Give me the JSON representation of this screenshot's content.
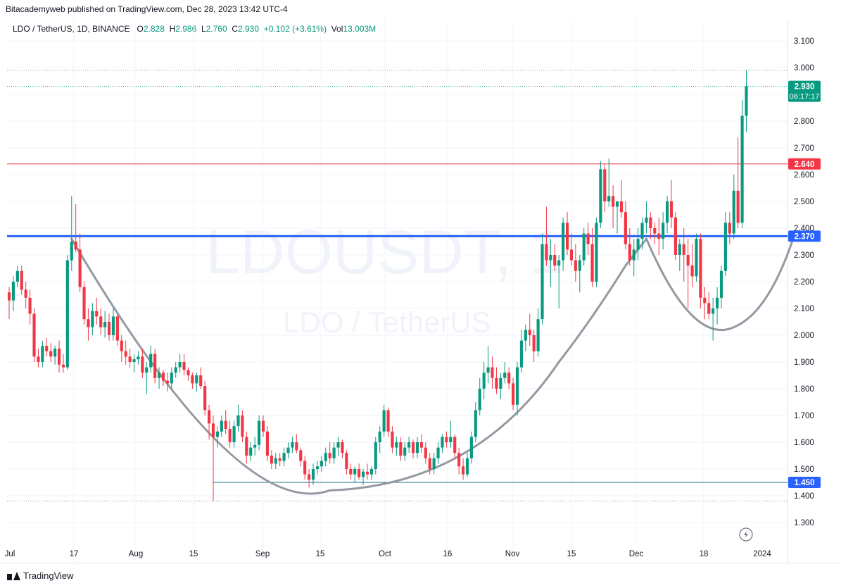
{
  "header": {
    "published_line": "Bitacademyweb published on TradingView.com, Dec 28, 2023 13:42 UTC-4"
  },
  "legend": {
    "symbol": "LDO / TetherUS, 1D, BINANCE",
    "o_label": "O",
    "o_value": "2.828",
    "h_label": "H",
    "h_value": "2.986",
    "l_label": "L",
    "l_value": "2.760",
    "c_label": "C",
    "c_value": "2.930",
    "change": "+0.102 (+3.61%)",
    "vol_label": "Vol",
    "vol_value": "13.003M"
  },
  "watermark": {
    "ticker": "LDOUSDT, 1",
    "pair": "LDO / TetherUS"
  },
  "footer": {
    "brand": "TradingView"
  },
  "colors": {
    "up": "#089981",
    "down": "#f23645",
    "support_blue": "#2962ff",
    "resistance_red": "#f23645",
    "low_line": "#1e6e8a",
    "arc": "#9598a1"
  },
  "chart_data": {
    "type": "candlestick",
    "price_axis": {
      "ticks": [
        "3.100",
        "3.000",
        "2.900",
        "2.800",
        "2.700",
        "2.600",
        "2.500",
        "2.400",
        "2.300",
        "2.200",
        "2.100",
        "2.000",
        "1.900",
        "1.800",
        "1.700",
        "1.600",
        "1.500",
        "1.400",
        "1.300"
      ],
      "range": [
        1.25,
        3.16
      ]
    },
    "time_axis": {
      "ticks": [
        "Jul",
        "17",
        "Aug",
        "15",
        "Sep",
        "15",
        "Oct",
        "16",
        "Nov",
        "15",
        "Dec",
        "18",
        "2024"
      ]
    },
    "price_labels": {
      "last_price": "2.930",
      "countdown": "06:17:17",
      "resistance": "2.640",
      "support": "2.370",
      "low": "1.450"
    },
    "levels": {
      "resistance": 2.64,
      "support": 2.37,
      "low": 1.45,
      "high_dotted": 2.99,
      "low_dotted": 1.38,
      "last_dotted": 2.93
    },
    "candles": [
      [
        2.16,
        2.18,
        2.06,
        2.13
      ],
      [
        2.13,
        2.22,
        2.09,
        2.2
      ],
      [
        2.2,
        2.26,
        2.18,
        2.24
      ],
      [
        2.24,
        2.26,
        2.15,
        2.17
      ],
      [
        2.17,
        2.2,
        2.1,
        2.14
      ],
      [
        2.14,
        2.17,
        2.04,
        2.08
      ],
      [
        2.08,
        2.1,
        1.9,
        1.92
      ],
      [
        1.92,
        1.95,
        1.88,
        1.9
      ],
      [
        1.9,
        1.98,
        1.88,
        1.96
      ],
      [
        1.96,
        1.99,
        1.92,
        1.94
      ],
      [
        1.94,
        1.97,
        1.9,
        1.92
      ],
      [
        1.92,
        1.96,
        1.89,
        1.95
      ],
      [
        1.95,
        1.98,
        1.86,
        1.89
      ],
      [
        1.89,
        1.93,
        1.86,
        1.88
      ],
      [
        1.88,
        2.3,
        1.87,
        2.28
      ],
      [
        2.28,
        2.52,
        2.24,
        2.35
      ],
      [
        2.35,
        2.49,
        2.31,
        2.32
      ],
      [
        2.32,
        2.38,
        2.16,
        2.18
      ],
      [
        2.18,
        2.2,
        2.04,
        2.06
      ],
      [
        2.06,
        2.1,
        1.98,
        2.03
      ],
      [
        2.03,
        2.12,
        2.0,
        2.09
      ],
      [
        2.09,
        2.14,
        2.04,
        2.07
      ],
      [
        2.07,
        2.1,
        2.0,
        2.03
      ],
      [
        2.03,
        2.09,
        1.99,
        2.05
      ],
      [
        2.05,
        2.08,
        1.98,
        2.0
      ],
      [
        2.0,
        2.1,
        1.98,
        2.07
      ],
      [
        2.07,
        2.08,
        1.96,
        1.98
      ],
      [
        1.98,
        2.0,
        1.9,
        1.94
      ],
      [
        1.94,
        1.98,
        1.89,
        1.92
      ],
      [
        1.92,
        1.95,
        1.88,
        1.9
      ],
      [
        1.9,
        1.93,
        1.86,
        1.91
      ],
      [
        1.91,
        1.94,
        1.89,
        1.92
      ],
      [
        1.92,
        1.95,
        1.84,
        1.86
      ],
      [
        1.86,
        1.9,
        1.78,
        1.88
      ],
      [
        1.88,
        1.96,
        1.86,
        1.93
      ],
      [
        1.93,
        1.95,
        1.82,
        1.84
      ],
      [
        1.84,
        1.88,
        1.8,
        1.86
      ],
      [
        1.86,
        1.87,
        1.81,
        1.83
      ],
      [
        1.83,
        1.86,
        1.79,
        1.82
      ],
      [
        1.82,
        1.88,
        1.8,
        1.86
      ],
      [
        1.86,
        1.9,
        1.84,
        1.88
      ],
      [
        1.88,
        1.93,
        1.86,
        1.9
      ],
      [
        1.9,
        1.93,
        1.85,
        1.87
      ],
      [
        1.87,
        1.88,
        1.83,
        1.85
      ],
      [
        1.85,
        1.86,
        1.8,
        1.82
      ],
      [
        1.82,
        1.86,
        1.79,
        1.85
      ],
      [
        1.85,
        1.88,
        1.8,
        1.81
      ],
      [
        1.81,
        1.83,
        1.7,
        1.72
      ],
      [
        1.72,
        1.74,
        1.61,
        1.67
      ],
      [
        1.67,
        1.7,
        1.38,
        1.62
      ],
      [
        1.62,
        1.66,
        1.58,
        1.64
      ],
      [
        1.64,
        1.7,
        1.62,
        1.68
      ],
      [
        1.68,
        1.72,
        1.63,
        1.65
      ],
      [
        1.65,
        1.68,
        1.58,
        1.6
      ],
      [
        1.6,
        1.68,
        1.58,
        1.66
      ],
      [
        1.66,
        1.74,
        1.64,
        1.7
      ],
      [
        1.7,
        1.72,
        1.6,
        1.62
      ],
      [
        1.62,
        1.64,
        1.52,
        1.55
      ],
      [
        1.55,
        1.6,
        1.53,
        1.58
      ],
      [
        1.58,
        1.62,
        1.55,
        1.59
      ],
      [
        1.59,
        1.7,
        1.57,
        1.68
      ],
      [
        1.68,
        1.7,
        1.62,
        1.64
      ],
      [
        1.64,
        1.66,
        1.53,
        1.55
      ],
      [
        1.55,
        1.57,
        1.5,
        1.52
      ],
      [
        1.52,
        1.56,
        1.5,
        1.54
      ],
      [
        1.54,
        1.56,
        1.51,
        1.53
      ],
      [
        1.53,
        1.58,
        1.51,
        1.56
      ],
      [
        1.56,
        1.6,
        1.54,
        1.58
      ],
      [
        1.58,
        1.62,
        1.56,
        1.6
      ],
      [
        1.6,
        1.63,
        1.56,
        1.57
      ],
      [
        1.57,
        1.58,
        1.51,
        1.53
      ],
      [
        1.53,
        1.55,
        1.46,
        1.48
      ],
      [
        1.48,
        1.5,
        1.43,
        1.46
      ],
      [
        1.46,
        1.52,
        1.44,
        1.5
      ],
      [
        1.5,
        1.53,
        1.48,
        1.51
      ],
      [
        1.51,
        1.55,
        1.49,
        1.53
      ],
      [
        1.53,
        1.58,
        1.51,
        1.56
      ],
      [
        1.56,
        1.6,
        1.52,
        1.54
      ],
      [
        1.54,
        1.6,
        1.52,
        1.58
      ],
      [
        1.58,
        1.62,
        1.55,
        1.6
      ],
      [
        1.6,
        1.61,
        1.54,
        1.56
      ],
      [
        1.56,
        1.57,
        1.48,
        1.5
      ],
      [
        1.5,
        1.52,
        1.46,
        1.48
      ],
      [
        1.48,
        1.51,
        1.45,
        1.5
      ],
      [
        1.5,
        1.52,
        1.46,
        1.47
      ],
      [
        1.47,
        1.5,
        1.44,
        1.49
      ],
      [
        1.49,
        1.52,
        1.46,
        1.48
      ],
      [
        1.48,
        1.51,
        1.46,
        1.5
      ],
      [
        1.5,
        1.62,
        1.48,
        1.6
      ],
      [
        1.6,
        1.66,
        1.56,
        1.64
      ],
      [
        1.64,
        1.74,
        1.62,
        1.72
      ],
      [
        1.72,
        1.73,
        1.62,
        1.64
      ],
      [
        1.64,
        1.66,
        1.56,
        1.58
      ],
      [
        1.58,
        1.62,
        1.55,
        1.6
      ],
      [
        1.6,
        1.62,
        1.53,
        1.55
      ],
      [
        1.55,
        1.6,
        1.53,
        1.58
      ],
      [
        1.58,
        1.62,
        1.56,
        1.6
      ],
      [
        1.6,
        1.61,
        1.54,
        1.56
      ],
      [
        1.56,
        1.62,
        1.54,
        1.6
      ],
      [
        1.6,
        1.63,
        1.56,
        1.58
      ],
      [
        1.58,
        1.6,
        1.52,
        1.54
      ],
      [
        1.54,
        1.56,
        1.48,
        1.5
      ],
      [
        1.5,
        1.56,
        1.48,
        1.54
      ],
      [
        1.54,
        1.6,
        1.52,
        1.58
      ],
      [
        1.58,
        1.63,
        1.56,
        1.62
      ],
      [
        1.62,
        1.64,
        1.58,
        1.6
      ],
      [
        1.6,
        1.68,
        1.58,
        1.62
      ],
      [
        1.62,
        1.63,
        1.54,
        1.56
      ],
      [
        1.56,
        1.58,
        1.48,
        1.51
      ],
      [
        1.51,
        1.54,
        1.46,
        1.48
      ],
      [
        1.48,
        1.56,
        1.47,
        1.54
      ],
      [
        1.54,
        1.64,
        1.52,
        1.62
      ],
      [
        1.62,
        1.75,
        1.6,
        1.72
      ],
      [
        1.72,
        1.84,
        1.7,
        1.8
      ],
      [
        1.8,
        1.9,
        1.76,
        1.86
      ],
      [
        1.86,
        1.96,
        1.82,
        1.88
      ],
      [
        1.88,
        1.92,
        1.8,
        1.84
      ],
      [
        1.84,
        1.88,
        1.78,
        1.8
      ],
      [
        1.8,
        1.86,
        1.76,
        1.84
      ],
      [
        1.84,
        1.9,
        1.82,
        1.86
      ],
      [
        1.86,
        1.88,
        1.8,
        1.82
      ],
      [
        1.82,
        1.84,
        1.72,
        1.74
      ],
      [
        1.74,
        1.9,
        1.7,
        1.88
      ],
      [
        1.88,
        2.02,
        1.86,
        1.98
      ],
      [
        1.98,
        2.04,
        1.94,
        2.02
      ],
      [
        2.02,
        2.08,
        1.96,
        2.0
      ],
      [
        2.0,
        2.02,
        1.9,
        1.94
      ],
      [
        1.94,
        2.1,
        1.92,
        2.06
      ],
      [
        2.06,
        2.38,
        2.04,
        2.34
      ],
      [
        2.34,
        2.48,
        2.26,
        2.28
      ],
      [
        2.28,
        2.36,
        2.18,
        2.3
      ],
      [
        2.3,
        2.34,
        2.24,
        2.26
      ],
      [
        2.26,
        2.3,
        2.1,
        2.28
      ],
      [
        2.28,
        2.44,
        2.24,
        2.42
      ],
      [
        2.42,
        2.46,
        2.3,
        2.32
      ],
      [
        2.32,
        2.38,
        2.26,
        2.28
      ],
      [
        2.28,
        2.34,
        2.2,
        2.24
      ],
      [
        2.24,
        2.3,
        2.16,
        2.28
      ],
      [
        2.28,
        2.4,
        2.26,
        2.38
      ],
      [
        2.38,
        2.42,
        2.3,
        2.34
      ],
      [
        2.34,
        2.4,
        2.18,
        2.2
      ],
      [
        2.2,
        2.44,
        2.18,
        2.42
      ],
      [
        2.42,
        2.65,
        2.4,
        2.62
      ],
      [
        2.62,
        2.64,
        2.46,
        2.5
      ],
      [
        2.5,
        2.66,
        2.48,
        2.52
      ],
      [
        2.52,
        2.56,
        2.4,
        2.48
      ],
      [
        2.48,
        2.5,
        2.38,
        2.5
      ],
      [
        2.5,
        2.58,
        2.44,
        2.46
      ],
      [
        2.46,
        2.5,
        2.32,
        2.34
      ],
      [
        2.34,
        2.4,
        2.26,
        2.28
      ],
      [
        2.28,
        2.36,
        2.22,
        2.32
      ],
      [
        2.32,
        2.4,
        2.28,
        2.36
      ],
      [
        2.36,
        2.44,
        2.32,
        2.42
      ],
      [
        2.42,
        2.5,
        2.38,
        2.44
      ],
      [
        2.44,
        2.46,
        2.36,
        2.4
      ],
      [
        2.4,
        2.42,
        2.34,
        2.38
      ],
      [
        2.38,
        2.44,
        2.3,
        2.36
      ],
      [
        2.36,
        2.46,
        2.32,
        2.42
      ],
      [
        2.42,
        2.52,
        2.38,
        2.5
      ],
      [
        2.5,
        2.58,
        2.4,
        2.44
      ],
      [
        2.44,
        2.46,
        2.28,
        2.3
      ],
      [
        2.3,
        2.36,
        2.24,
        2.34
      ],
      [
        2.34,
        2.4,
        2.2,
        2.3
      ],
      [
        2.3,
        2.36,
        2.1,
        2.26
      ],
      [
        2.26,
        2.34,
        2.18,
        2.22
      ],
      [
        2.22,
        2.38,
        2.2,
        2.36
      ],
      [
        2.36,
        2.38,
        2.1,
        2.14
      ],
      [
        2.14,
        2.18,
        2.06,
        2.12
      ],
      [
        2.12,
        2.16,
        2.06,
        2.08
      ],
      [
        2.08,
        2.14,
        1.98,
        2.1
      ],
      [
        2.1,
        2.18,
        2.04,
        2.14
      ],
      [
        2.14,
        2.26,
        2.1,
        2.24
      ],
      [
        2.24,
        2.46,
        2.22,
        2.42
      ],
      [
        2.42,
        2.46,
        2.34,
        2.38
      ],
      [
        2.38,
        2.6,
        2.36,
        2.54
      ],
      [
        2.54,
        2.74,
        2.4,
        2.42
      ],
      [
        2.42,
        2.88,
        2.4,
        2.82
      ],
      [
        2.82,
        2.99,
        2.76,
        2.93
      ]
    ]
  }
}
